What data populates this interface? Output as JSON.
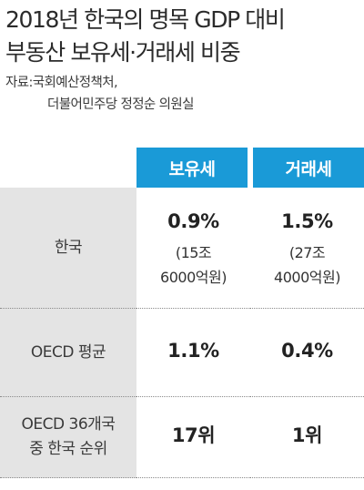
{
  "title": {
    "line1": "2018년 한국의 명목 GDP 대비",
    "line2": "부동산 보유세·거래세 비중"
  },
  "source": {
    "line1": "자료:국회예산정책처,",
    "line2": "더불어민주당 정정순 의원실"
  },
  "chart_data": {
    "type": "table",
    "title": "2018년 한국의 명목 GDP 대비 부동산 보유세·거래세 비중",
    "columns": [
      "보유세",
      "거래세"
    ],
    "rows": [
      {
        "label_lines": [
          "한국"
        ],
        "cells": [
          {
            "main": "0.9%",
            "sub1": "(15조",
            "sub2": "6000억원)"
          },
          {
            "main": "1.5%",
            "sub1": "(27조",
            "sub2": "4000억원)"
          }
        ]
      },
      {
        "label_lines": [
          "OECD 평균"
        ],
        "cells": [
          {
            "main": "1.1%"
          },
          {
            "main": "0.4%"
          }
        ]
      },
      {
        "label_lines": [
          "OECD 36개국",
          "중 한국 순위"
        ],
        "cells": [
          {
            "main": "17위"
          },
          {
            "main": "1위"
          }
        ]
      }
    ],
    "values": {
      "보유세": {
        "한국_GDP_대비_비중_pct": 0.9,
        "한국_금액_억원": 156000,
        "OECD_평균_pct": 1.1,
        "OECD_순위": 17
      },
      "거래세": {
        "한국_GDP_대비_비중_pct": 1.5,
        "한국_금액_억원": 274000,
        "OECD_평균_pct": 0.4,
        "OECD_순위": 1
      }
    }
  },
  "colors": {
    "header_bg": "#1a9ad7",
    "label_bg": "#e4e4e4"
  }
}
